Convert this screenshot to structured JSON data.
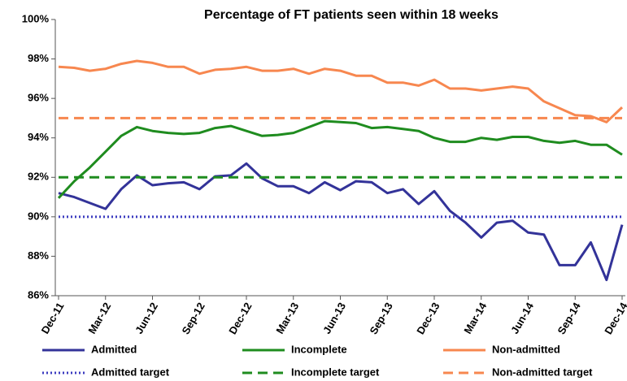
{
  "chart_data": {
    "type": "line",
    "title": "Percentage of FT patients seen within  18 weeks",
    "categories": [
      "Dec-11",
      null,
      null,
      "Mar-12",
      null,
      null,
      "Jun-12",
      null,
      null,
      "Sep-12",
      null,
      null,
      "Dec-12",
      null,
      null,
      "Mar-13",
      null,
      null,
      "Jun-13",
      null,
      null,
      "Sep-13",
      null,
      null,
      "Dec-13",
      null,
      null,
      "Mar-14",
      null,
      null,
      "Jun-14",
      null,
      null,
      "Sep-14",
      null,
      null,
      "Dec-14"
    ],
    "series": [
      {
        "name": "Admitted",
        "color": "#333399",
        "dash": "solid",
        "values": [
          91.2,
          91.0,
          90.7,
          90.4,
          91.4,
          92.1,
          91.6,
          91.7,
          91.75,
          91.4,
          92.05,
          92.1,
          92.7,
          91.95,
          91.55,
          91.55,
          91.2,
          91.75,
          91.35,
          91.8,
          91.75,
          91.2,
          91.4,
          90.65,
          91.3,
          90.3,
          89.7,
          88.95,
          89.7,
          89.8,
          89.2,
          89.1,
          87.55,
          87.55,
          88.7,
          86.8,
          89.6
        ]
      },
      {
        "name": "Incomplete",
        "color": "#1f8c1f",
        "dash": "solid",
        "values": [
          90.95,
          91.8,
          92.5,
          93.3,
          94.1,
          94.55,
          94.35,
          94.25,
          94.2,
          94.25,
          94.5,
          94.6,
          94.35,
          94.1,
          94.15,
          94.25,
          94.55,
          94.85,
          94.8,
          94.75,
          94.5,
          94.55,
          94.45,
          94.35,
          94.0,
          93.8,
          93.8,
          94.0,
          93.9,
          94.05,
          94.05,
          93.85,
          93.75,
          93.85,
          93.65,
          93.65,
          93.15
        ]
      },
      {
        "name": "Non-admitted",
        "color": "#f7874f",
        "dash": "solid",
        "values": [
          97.6,
          97.55,
          97.4,
          97.5,
          97.75,
          97.9,
          97.8,
          97.6,
          97.6,
          97.25,
          97.45,
          97.5,
          97.6,
          97.4,
          97.4,
          97.5,
          97.25,
          97.5,
          97.4,
          97.15,
          97.15,
          96.8,
          96.8,
          96.65,
          96.95,
          96.5,
          96.5,
          96.4,
          96.5,
          96.6,
          96.5,
          95.85,
          95.5,
          95.15,
          95.1,
          94.8,
          95.55
        ]
      },
      {
        "name": "Admitted target",
        "color": "#3c3cc0",
        "dash": "dotted",
        "values": [
          90,
          90,
          90,
          90,
          90,
          90,
          90,
          90,
          90,
          90,
          90,
          90,
          90,
          90,
          90,
          90,
          90,
          90,
          90,
          90,
          90,
          90,
          90,
          90,
          90,
          90,
          90,
          90,
          90,
          90,
          90,
          90,
          90,
          90,
          90,
          90,
          90
        ]
      },
      {
        "name": "Incomplete target",
        "color": "#1f8c1f",
        "dash": "dashed",
        "values": [
          92,
          92,
          92,
          92,
          92,
          92,
          92,
          92,
          92,
          92,
          92,
          92,
          92,
          92,
          92,
          92,
          92,
          92,
          92,
          92,
          92,
          92,
          92,
          92,
          92,
          92,
          92,
          92,
          92,
          92,
          92,
          92,
          92,
          92,
          92,
          92,
          92
        ]
      },
      {
        "name": "Non-admitted target",
        "color": "#f7874f",
        "dash": "dashed",
        "values": [
          95,
          95,
          95,
          95,
          95,
          95,
          95,
          95,
          95,
          95,
          95,
          95,
          95,
          95,
          95,
          95,
          95,
          95,
          95,
          95,
          95,
          95,
          95,
          95,
          95,
          95,
          95,
          95,
          95,
          95,
          95,
          95,
          95,
          95,
          95,
          95,
          95
        ]
      }
    ],
    "ylim": [
      86,
      100
    ],
    "yticks": [
      {
        "value": 86,
        "label": "86%"
      },
      {
        "value": 88,
        "label": "88%"
      },
      {
        "value": 90,
        "label": "90%"
      },
      {
        "value": 92,
        "label": "92%"
      },
      {
        "value": 94,
        "label": "94%"
      },
      {
        "value": 96,
        "label": "96%"
      },
      {
        "value": 98,
        "label": "98%"
      },
      {
        "value": 100,
        "label": "100%"
      }
    ],
    "grid": false,
    "legend": "bottom"
  }
}
